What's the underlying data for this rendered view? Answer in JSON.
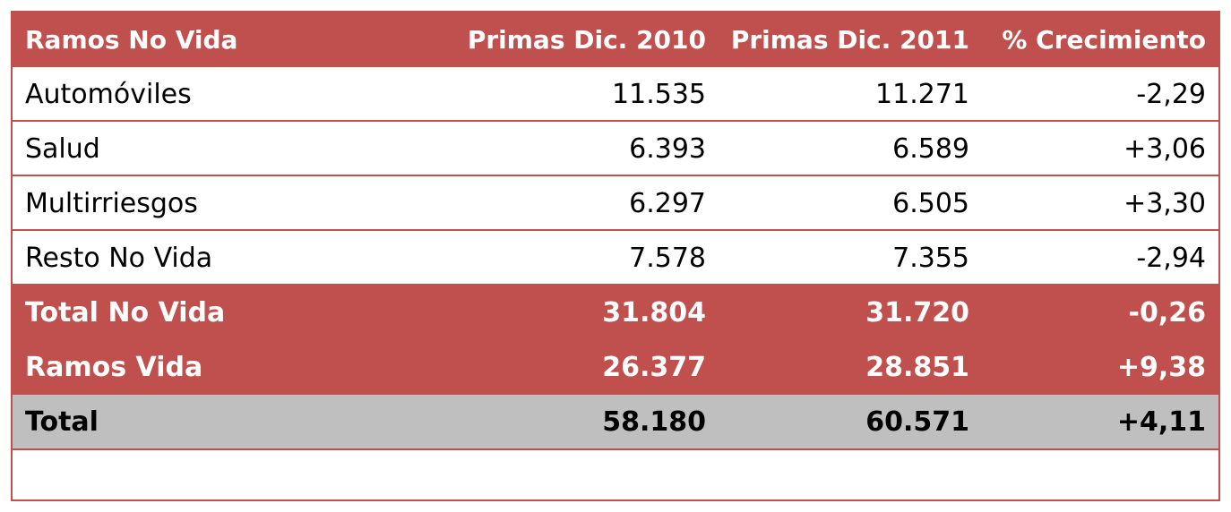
{
  "table": {
    "headers": [
      "Ramos No Vida",
      "Primas Dic. 2010",
      "Primas Dic. 2011",
      "% Crecimiento"
    ],
    "rows": [
      {
        "kind": "body",
        "cells": [
          "Automóviles",
          "11.535",
          "11.271",
          "-2,29"
        ]
      },
      {
        "kind": "body",
        "cells": [
          "Salud",
          "6.393",
          "6.589",
          "+3,06"
        ]
      },
      {
        "kind": "body",
        "cells": [
          "Multirriesgos",
          "6.297",
          "6.505",
          "+3,30"
        ]
      },
      {
        "kind": "body",
        "cells": [
          "Resto No Vida",
          "7.578",
          "7.355",
          "-2,94"
        ]
      },
      {
        "kind": "subtotal",
        "cells": [
          "Total No Vida",
          "31.804",
          "31.720",
          "-0,26"
        ]
      },
      {
        "kind": "subtotal",
        "cells": [
          "Ramos Vida",
          "26.377",
          "28.851",
          "+9,38"
        ]
      },
      {
        "kind": "total",
        "cells": [
          "Total",
          "58.180",
          "60.571",
          "+4,11"
        ]
      }
    ]
  },
  "colors": {
    "header_bg": "#c0504d",
    "total_bg": "#bfbfbf",
    "border": "#c0504d"
  }
}
